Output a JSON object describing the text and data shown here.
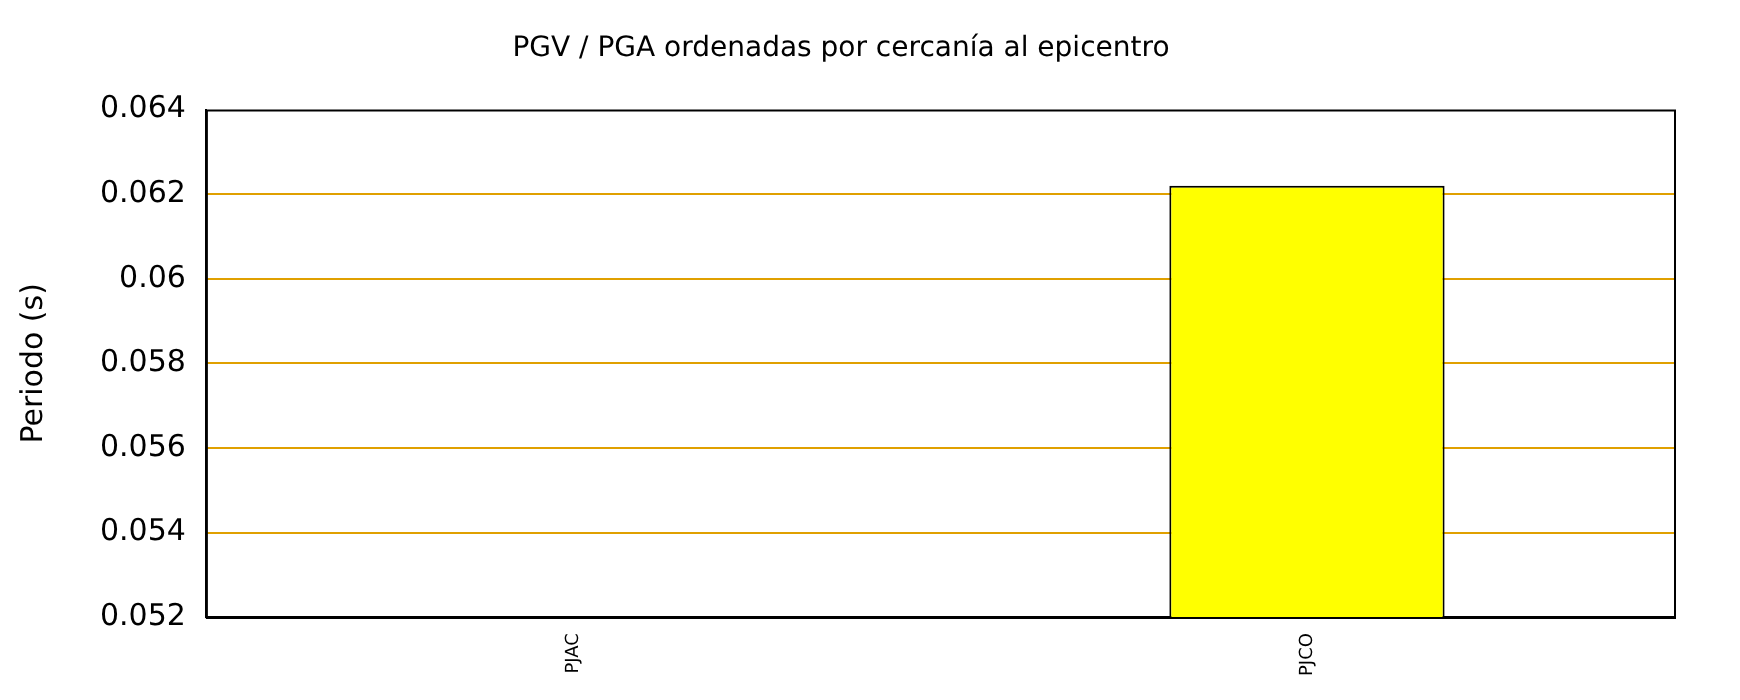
{
  "chart_data": {
    "type": "bar",
    "title": "PGV / PGA ordenadas por cercanía al epicentro",
    "ylabel": "Periodo (s)",
    "categories": [
      "PJAC",
      "PJCO"
    ],
    "series": [
      {
        "color": "#ffff00",
        "values": [
          null,
          0.0622
        ]
      }
    ],
    "ylim": [
      0.052,
      0.064
    ],
    "yticks": [
      0.052,
      0.054,
      0.056,
      0.058,
      0.06,
      0.062,
      0.064
    ],
    "grid": "y"
  }
}
